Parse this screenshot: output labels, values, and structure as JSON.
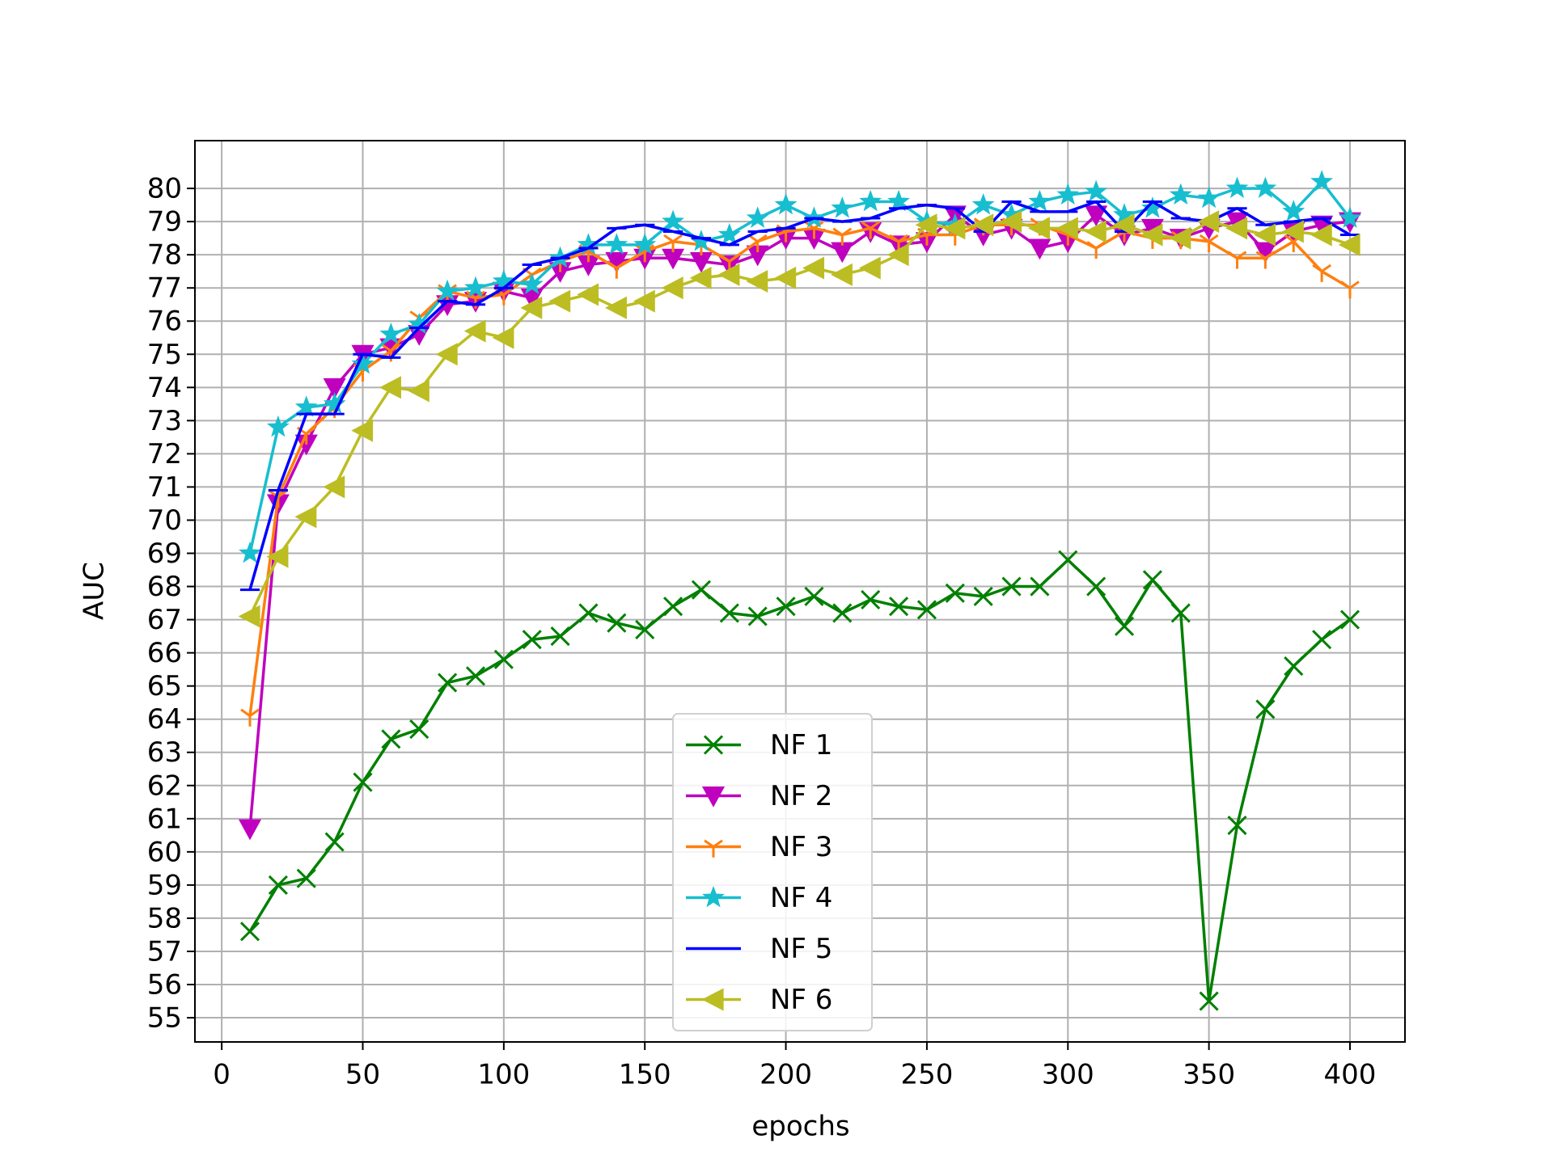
{
  "chart_data": {
    "type": "line",
    "xlabel": "epochs",
    "ylabel": "AUC",
    "x": [
      10,
      20,
      30,
      40,
      50,
      60,
      70,
      80,
      90,
      100,
      110,
      120,
      130,
      140,
      150,
      160,
      170,
      180,
      190,
      200,
      210,
      220,
      230,
      240,
      250,
      260,
      270,
      280,
      290,
      300,
      310,
      320,
      330,
      340,
      350,
      360,
      370,
      380,
      390,
      400
    ],
    "xlim": [
      -9.5,
      419.5
    ],
    "xticks": [
      0,
      50,
      100,
      150,
      200,
      250,
      300,
      350,
      400
    ],
    "ylim": [
      54.27,
      81.44
    ],
    "yticks": [
      55,
      56,
      57,
      58,
      59,
      60,
      61,
      62,
      63,
      64,
      65,
      66,
      67,
      68,
      69,
      70,
      71,
      72,
      73,
      74,
      75,
      76,
      77,
      78,
      79,
      80
    ],
    "grid": true,
    "legend": "lower center",
    "series": [
      {
        "name": "NF 1",
        "color": "#008000",
        "marker": "x",
        "values": [
          57.6,
          59.0,
          59.2,
          60.3,
          62.1,
          63.4,
          63.7,
          65.1,
          65.3,
          65.8,
          66.4,
          66.5,
          67.2,
          66.9,
          66.7,
          67.4,
          67.9,
          67.2,
          67.1,
          67.4,
          67.7,
          67.2,
          67.6,
          67.4,
          67.3,
          67.8,
          67.7,
          68.0,
          68.0,
          68.8,
          68.0,
          66.8,
          68.2,
          67.2,
          55.5,
          60.8,
          64.3,
          65.6,
          66.4,
          67.0
        ]
      },
      {
        "name": "NF 2",
        "color": "#bf00bf",
        "marker": "v",
        "values": [
          60.7,
          70.5,
          72.3,
          74.0,
          75.0,
          75.2,
          75.6,
          76.5,
          76.6,
          76.9,
          76.7,
          77.5,
          77.7,
          77.8,
          77.9,
          77.9,
          77.8,
          77.7,
          78.0,
          78.5,
          78.5,
          78.1,
          78.7,
          78.3,
          78.4,
          79.2,
          78.6,
          78.8,
          78.2,
          78.4,
          79.2,
          78.6,
          78.8,
          78.5,
          78.8,
          79.0,
          78.1,
          78.7,
          78.9,
          79.0
        ]
      },
      {
        "name": "NF 3",
        "color": "#ff7f0e",
        "marker": "1",
        "values": [
          64.1,
          70.7,
          72.6,
          73.4,
          74.5,
          75.1,
          76.1,
          76.9,
          76.7,
          76.8,
          77.4,
          77.8,
          78.1,
          77.6,
          78.1,
          78.4,
          78.3,
          77.8,
          78.4,
          78.7,
          78.8,
          78.6,
          78.8,
          78.4,
          78.6,
          78.6,
          78.9,
          78.9,
          78.9,
          78.6,
          78.2,
          78.7,
          78.5,
          78.5,
          78.4,
          77.9,
          77.9,
          78.4,
          77.5,
          77.0
        ]
      },
      {
        "name": "NF 4",
        "color": "#17becf",
        "marker": "*",
        "values": [
          69.0,
          72.8,
          73.4,
          73.5,
          74.7,
          75.6,
          75.9,
          76.9,
          77.0,
          77.2,
          77.1,
          77.9,
          78.3,
          78.3,
          78.3,
          79.0,
          78.4,
          78.6,
          79.1,
          79.5,
          79.1,
          79.4,
          79.6,
          79.6,
          79.0,
          78.9,
          79.5,
          79.2,
          79.6,
          79.8,
          79.9,
          79.2,
          79.4,
          79.8,
          79.7,
          80.0,
          80.0,
          79.3,
          80.2,
          79.1
        ]
      },
      {
        "name": "NF 5",
        "color": "#0000ff",
        "marker": "_",
        "values": [
          67.9,
          70.9,
          73.2,
          73.2,
          75.0,
          74.9,
          75.8,
          76.6,
          76.5,
          77.0,
          77.7,
          77.9,
          78.2,
          78.8,
          78.9,
          78.7,
          78.5,
          78.3,
          78.7,
          78.8,
          79.1,
          79.0,
          79.1,
          79.4,
          79.5,
          79.4,
          78.7,
          79.6,
          79.3,
          79.3,
          79.6,
          78.7,
          79.6,
          79.1,
          79.0,
          79.4,
          78.9,
          79.0,
          79.1,
          78.6
        ]
      },
      {
        "name": "NF 6",
        "color": "#bcbd22",
        "marker": "<",
        "values": [
          67.1,
          68.9,
          70.1,
          71.0,
          72.7,
          74.0,
          73.9,
          75.0,
          75.7,
          75.5,
          76.4,
          76.6,
          76.8,
          76.4,
          76.6,
          77.0,
          77.3,
          77.4,
          77.2,
          77.3,
          77.6,
          77.4,
          77.6,
          78.0,
          78.9,
          78.8,
          78.9,
          79.0,
          78.8,
          78.8,
          78.7,
          78.9,
          78.6,
          78.5,
          79.0,
          78.8,
          78.6,
          78.7,
          78.6,
          78.3
        ]
      }
    ]
  }
}
